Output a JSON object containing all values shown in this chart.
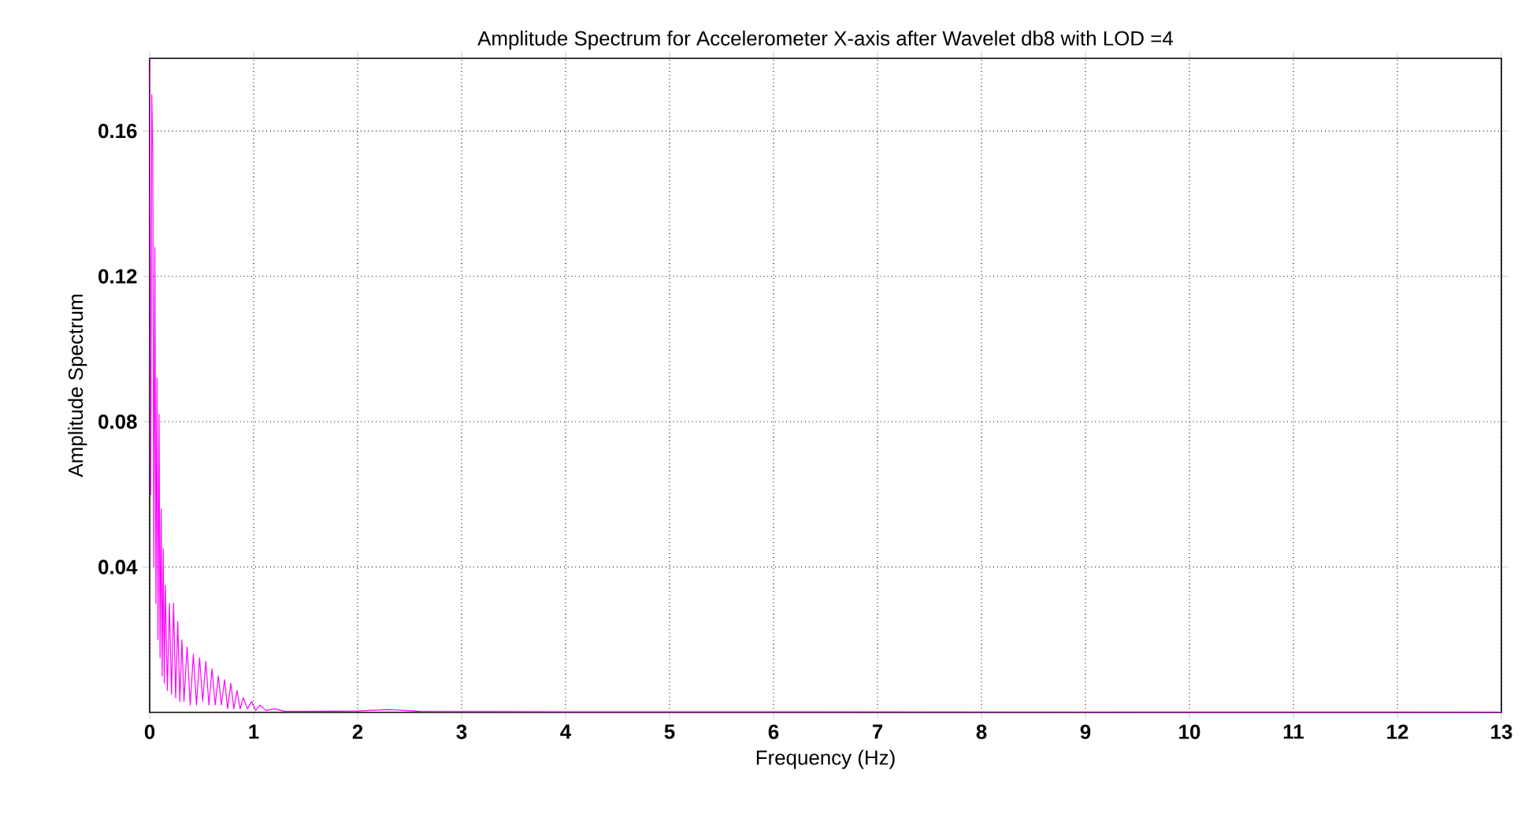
{
  "chart_data": {
    "type": "line",
    "title": "Amplitude Spectrum for Accelerometer X-axis after Wavelet db8 with LOD =4",
    "xlabel": "Frequency (Hz)",
    "ylabel": "Amplitude Spectrum",
    "xlim": [
      0,
      13
    ],
    "ylim": [
      0,
      0.18
    ],
    "xticks": [
      0,
      1,
      2,
      3,
      4,
      5,
      6,
      7,
      8,
      9,
      10,
      11,
      12,
      13
    ],
    "yticks": [
      0.04,
      0.08,
      0.12,
      0.16
    ],
    "grid": true,
    "series": [
      {
        "color": "#ff00ff",
        "x": [
          0,
          0.01,
          0.02,
          0.03,
          0.04,
          0.05,
          0.06,
          0.07,
          0.08,
          0.09,
          0.1,
          0.11,
          0.12,
          0.13,
          0.14,
          0.15,
          0.17,
          0.19,
          0.21,
          0.23,
          0.25,
          0.27,
          0.29,
          0.31,
          0.33,
          0.36,
          0.39,
          0.42,
          0.45,
          0.48,
          0.51,
          0.54,
          0.57,
          0.6,
          0.63,
          0.66,
          0.69,
          0.72,
          0.75,
          0.78,
          0.81,
          0.84,
          0.87,
          0.9,
          0.94,
          0.98,
          1.02,
          1.06,
          1.12,
          1.2,
          1.3,
          1.5,
          2.0,
          2.3,
          2.6,
          4,
          13
        ],
        "values": [
          0.18,
          0.06,
          0.17,
          0.153,
          0.04,
          0.128,
          0.03,
          0.092,
          0.02,
          0.082,
          0.015,
          0.056,
          0.01,
          0.045,
          0.008,
          0.035,
          0.006,
          0.03,
          0.005,
          0.03,
          0.004,
          0.025,
          0.003,
          0.02,
          0.003,
          0.018,
          0.002,
          0.016,
          0.002,
          0.015,
          0.003,
          0.014,
          0.002,
          0.012,
          0.002,
          0.01,
          0.002,
          0.009,
          0.001,
          0.008,
          0.001,
          0.006,
          0.001,
          0.004,
          0.001,
          0.003,
          0.0005,
          0.002,
          0.0005,
          0.001,
          0.0003,
          0.0003,
          0.0004,
          0.0008,
          0.0003,
          0.0002,
          0.0001
        ]
      }
    ]
  }
}
